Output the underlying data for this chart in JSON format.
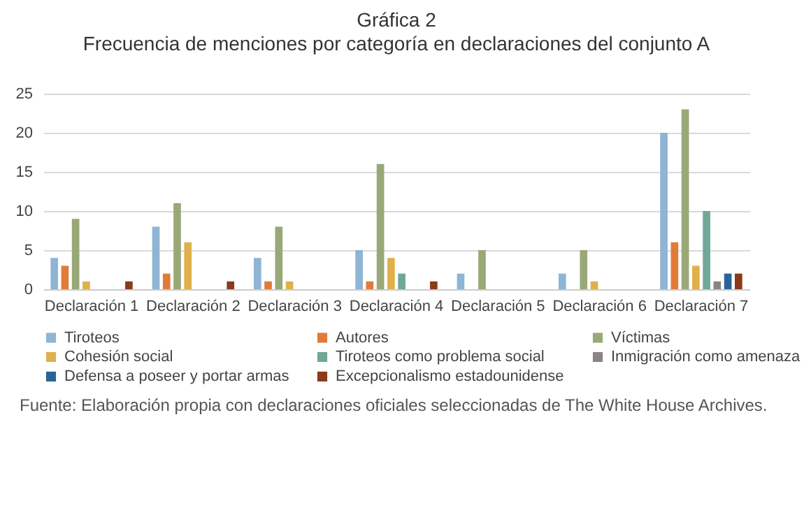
{
  "chart_data": {
    "type": "bar",
    "title": "Gráfica 2",
    "subtitle": "Frecuencia de menciones por categoría en declaraciones del conjunto A",
    "categories": [
      "Declaración 1",
      "Declaración 2",
      "Declaración 3",
      "Declaración 4",
      "Declaración 5",
      "Declaración 6",
      "Declaración 7"
    ],
    "series": [
      {
        "name": "Tiroteos",
        "color": "#8fb4d4",
        "values": [
          4,
          8,
          4,
          5,
          2,
          2,
          20
        ]
      },
      {
        "name": "Autores",
        "color": "#e07b39",
        "values": [
          3,
          2,
          1,
          1,
          0,
          0,
          6
        ]
      },
      {
        "name": "Víctimas",
        "color": "#9aa878",
        "values": [
          9,
          11,
          8,
          16,
          5,
          5,
          23
        ]
      },
      {
        "name": "Cohesión social",
        "color": "#e0b04a",
        "values": [
          1,
          6,
          1,
          4,
          0,
          1,
          3
        ]
      },
      {
        "name": "Tiroteos como problema social",
        "color": "#6fa898",
        "values": [
          0,
          0,
          0,
          2,
          0,
          0,
          10
        ]
      },
      {
        "name": "Inmigración como amenaza",
        "color": "#8c8484",
        "values": [
          0,
          0,
          0,
          0,
          0,
          0,
          1
        ]
      },
      {
        "name": "Defensa a poseer y portar armas",
        "color": "#2a6496",
        "values": [
          0,
          0,
          0,
          0,
          0,
          0,
          2
        ]
      },
      {
        "name": "Excepcionalismo estadounidense",
        "color": "#8b3a1a",
        "values": [
          1,
          1,
          0,
          1,
          0,
          0,
          2
        ]
      }
    ],
    "ylim": [
      0,
      25
    ],
    "yticks": [
      0,
      5,
      10,
      15,
      20,
      25
    ],
    "grid": "y",
    "legend": "bottom",
    "annotations": [
      "Fuente: Elaboración propia con declaraciones oficiales seleccionadas de The White House Archives."
    ]
  }
}
